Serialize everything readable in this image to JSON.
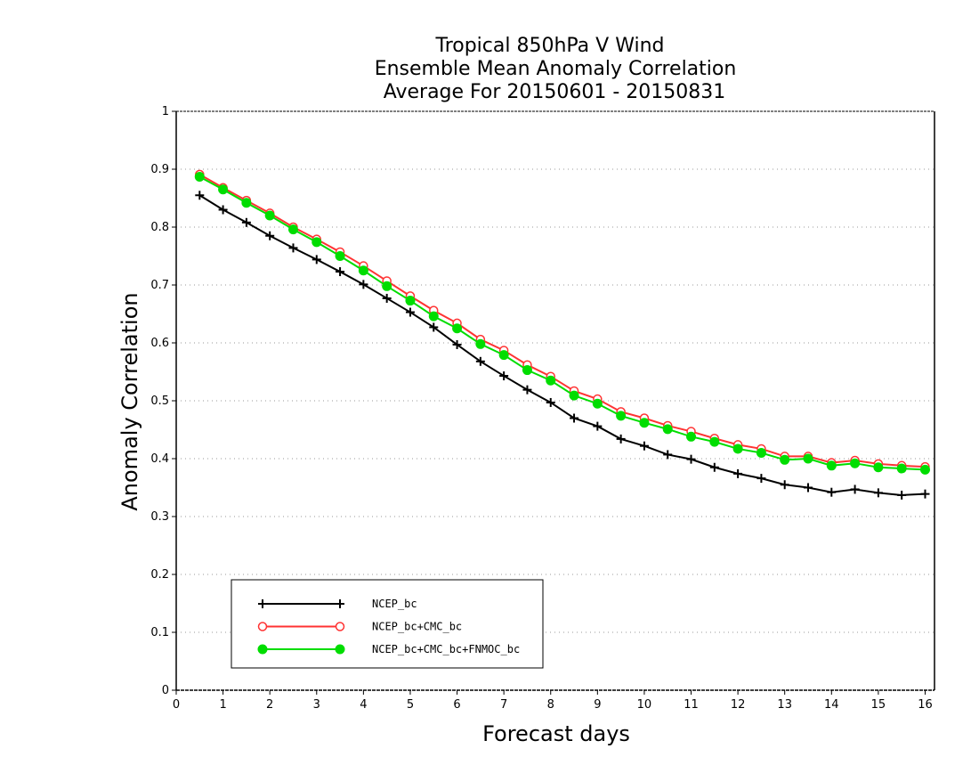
{
  "chart_data": {
    "type": "line",
    "title": [
      "Tropical 850hPa V Wind",
      "Ensemble Mean Anomaly Correlation",
      "Average For 20150601 - 20150831"
    ],
    "xlabel": "Forecast days",
    "ylabel": "Anomaly Correlation",
    "xlim": [
      0,
      16.2
    ],
    "ylim": [
      0,
      1
    ],
    "xticks": [
      0,
      1,
      2,
      3,
      4,
      5,
      6,
      7,
      8,
      9,
      10,
      11,
      12,
      13,
      14,
      15,
      16
    ],
    "xtick_labels": [
      "0",
      "1",
      "2",
      "3",
      "4",
      "5",
      "6",
      "7",
      "8",
      "9",
      "10",
      "11",
      "12",
      "13",
      "14",
      "15",
      "16"
    ],
    "yticks": [
      0,
      0.1,
      0.2,
      0.3,
      0.4,
      0.5,
      0.6,
      0.7,
      0.8,
      0.9,
      1
    ],
    "ytick_labels": [
      "0",
      "0.1",
      "0.2",
      "0.3",
      "0.4",
      "0.5",
      "0.6",
      "0.7",
      "0.8",
      "0.9",
      "1"
    ],
    "grid": "horizontal dotted",
    "legend_position": "bottom-left",
    "x": [
      0.5,
      1,
      1.5,
      2,
      2.5,
      3,
      3.5,
      4,
      4.5,
      5,
      5.5,
      6,
      6.5,
      7,
      7.5,
      8,
      8.5,
      9,
      9.5,
      10,
      10.5,
      11,
      11.5,
      12,
      12.5,
      13,
      13.5,
      14,
      14.5,
      15,
      15.5,
      16
    ],
    "series": [
      {
        "name": "NCEP_bc",
        "color": "#000000",
        "marker": "plus",
        "values": [
          0.855,
          0.83,
          0.808,
          0.785,
          0.764,
          0.744,
          0.723,
          0.701,
          0.677,
          0.653,
          0.627,
          0.597,
          0.568,
          0.543,
          0.519,
          0.497,
          0.47,
          0.456,
          0.434,
          0.422,
          0.407,
          0.399,
          0.385,
          0.374,
          0.366,
          0.355,
          0.35,
          0.342,
          0.347,
          0.341,
          0.337,
          0.339
        ]
      },
      {
        "name": "NCEP_bc+CMC_bc",
        "color": "#ff3333",
        "marker": "open-circle",
        "values": [
          0.891,
          0.868,
          0.846,
          0.824,
          0.8,
          0.779,
          0.757,
          0.733,
          0.707,
          0.681,
          0.656,
          0.634,
          0.606,
          0.587,
          0.562,
          0.542,
          0.517,
          0.503,
          0.481,
          0.47,
          0.457,
          0.447,
          0.435,
          0.424,
          0.417,
          0.404,
          0.404,
          0.393,
          0.397,
          0.391,
          0.388,
          0.386
        ]
      },
      {
        "name": "NCEP_bc+CMC_bc+FNMOC_bc",
        "color": "#00dd00",
        "marker": "filled-circle",
        "values": [
          0.887,
          0.865,
          0.842,
          0.82,
          0.796,
          0.774,
          0.75,
          0.725,
          0.698,
          0.673,
          0.646,
          0.625,
          0.598,
          0.579,
          0.553,
          0.535,
          0.509,
          0.495,
          0.474,
          0.462,
          0.451,
          0.438,
          0.429,
          0.417,
          0.41,
          0.398,
          0.4,
          0.388,
          0.392,
          0.385,
          0.383,
          0.381
        ]
      }
    ]
  }
}
